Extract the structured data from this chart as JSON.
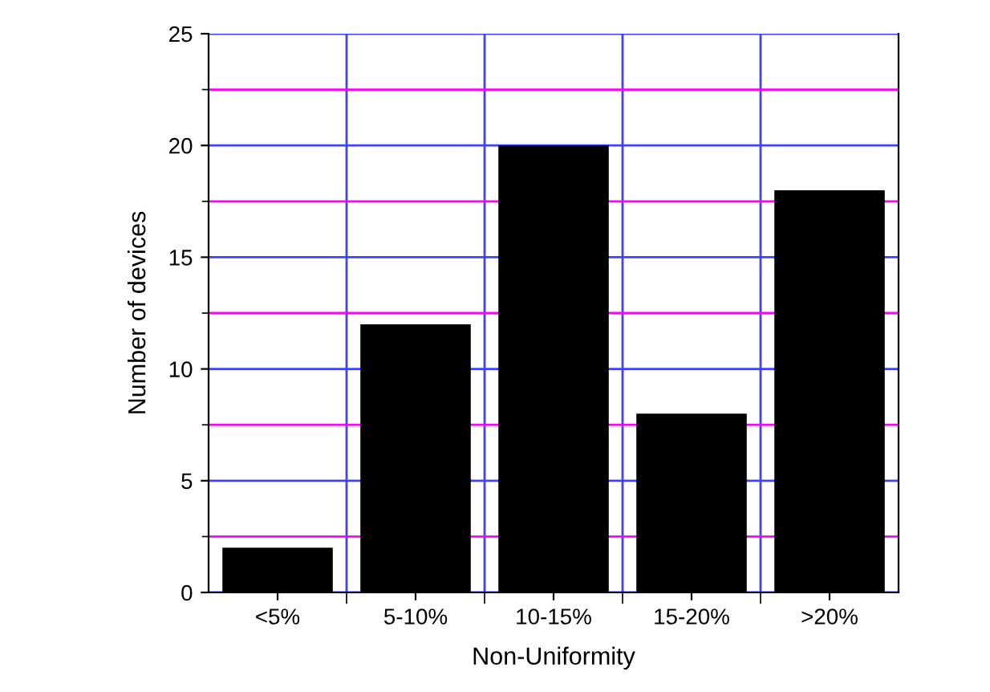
{
  "chart_data": {
    "type": "bar",
    "xlabel": "Non-Uniformity",
    "ylabel": "Number of devices",
    "categories": [
      "<5%",
      "5-10%",
      "10-15%",
      "15-20%",
      ">20%"
    ],
    "values": [
      2,
      12,
      20,
      8,
      18
    ],
    "color": "#000000",
    "ylim": [
      0,
      25
    ],
    "yticks": [
      0,
      {
        "value": 2.5,
        "label": null
      },
      5,
      {
        "value": 7.5,
        "label": null
      },
      10,
      {
        "value": 12.5,
        "label": null
      },
      15,
      {
        "value": 17.5,
        "label": null
      },
      20,
      {
        "value": 22.5,
        "label": null
      },
      25
    ],
    "grid": true,
    "legend": false
  }
}
